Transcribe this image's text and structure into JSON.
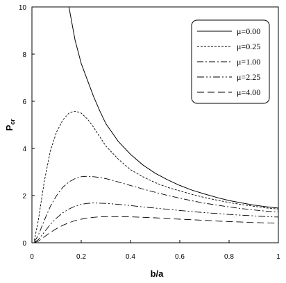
{
  "chart_data": {
    "type": "line",
    "title": "",
    "xlabel": "b/a",
    "ylabel_main": "P",
    "ylabel_sub": "cr",
    "xlim": [
      0,
      1
    ],
    "ylim": [
      0,
      10
    ],
    "x_ticks": [
      0,
      0.2,
      0.4,
      0.6,
      0.8,
      1
    ],
    "x_tick_labels": [
      "0",
      "0.2",
      "0.4",
      "0.6",
      "0.8",
      "1"
    ],
    "y_ticks": [
      0,
      2,
      4,
      6,
      8,
      10
    ],
    "y_tick_labels": [
      "0",
      "2",
      "4",
      "6",
      "8",
      "10"
    ],
    "legend_position": "top-right",
    "x": [
      0.01,
      0.025,
      0.05,
      0.075,
      0.1,
      0.125,
      0.15,
      0.175,
      0.2,
      0.225,
      0.25,
      0.275,
      0.3,
      0.35,
      0.4,
      0.45,
      0.5,
      0.55,
      0.6,
      0.65,
      0.7,
      0.75,
      0.8,
      0.85,
      0.9,
      0.95,
      1.0
    ],
    "series": [
      {
        "name": "μ=0.00",
        "dash": "",
        "values": [
          null,
          null,
          null,
          null,
          null,
          null,
          10.0,
          8.6,
          7.6,
          6.9,
          6.2,
          5.6,
          5.05,
          4.3,
          3.75,
          3.3,
          2.95,
          2.67,
          2.43,
          2.23,
          2.07,
          1.92,
          1.79,
          1.69,
          1.6,
          1.53,
          1.47
        ]
      },
      {
        "name": "μ=0.25",
        "dash": "3,2",
        "values": [
          0.1,
          0.9,
          2.6,
          3.9,
          4.7,
          5.2,
          5.5,
          5.58,
          5.5,
          5.25,
          4.9,
          4.5,
          4.1,
          3.55,
          3.1,
          2.8,
          2.55,
          2.35,
          2.2,
          2.05,
          1.92,
          1.81,
          1.71,
          1.62,
          1.55,
          1.48,
          1.43
        ]
      },
      {
        "name": "μ=1.00",
        "dash": "9,3,2,3",
        "values": [
          0.05,
          0.3,
          0.95,
          1.55,
          2.0,
          2.35,
          2.58,
          2.72,
          2.8,
          2.82,
          2.8,
          2.77,
          2.72,
          2.58,
          2.43,
          2.28,
          2.14,
          2.01,
          1.89,
          1.78,
          1.68,
          1.6,
          1.52,
          1.45,
          1.39,
          1.34,
          1.3
        ]
      },
      {
        "name": "μ=2.25",
        "dash": "10,3,2,3,2,3",
        "values": [
          0.02,
          0.12,
          0.45,
          0.78,
          1.05,
          1.27,
          1.43,
          1.55,
          1.63,
          1.67,
          1.69,
          1.68,
          1.67,
          1.63,
          1.58,
          1.52,
          1.47,
          1.42,
          1.37,
          1.32,
          1.28,
          1.24,
          1.2,
          1.17,
          1.14,
          1.11,
          1.09
        ]
      },
      {
        "name": "μ=4.00",
        "dash": "10,5",
        "values": [
          0.01,
          0.06,
          0.25,
          0.44,
          0.6,
          0.74,
          0.85,
          0.94,
          1.0,
          1.05,
          1.08,
          1.1,
          1.11,
          1.11,
          1.1,
          1.08,
          1.06,
          1.03,
          1.0,
          0.98,
          0.95,
          0.92,
          0.9,
          0.88,
          0.86,
          0.84,
          0.83
        ]
      }
    ]
  }
}
